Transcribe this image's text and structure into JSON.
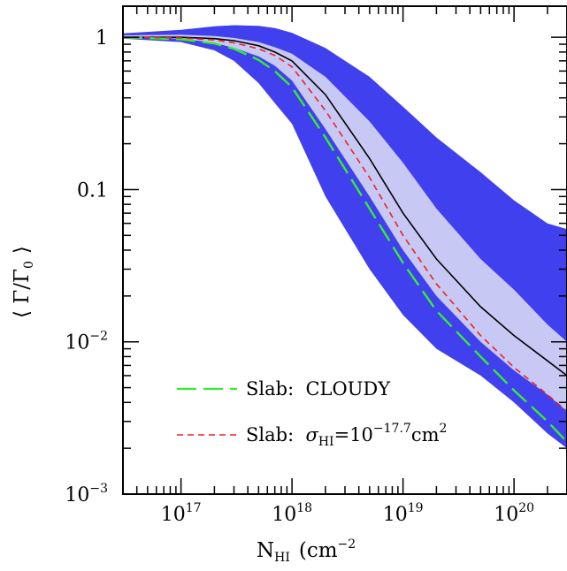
{
  "chart_data": {
    "type": "line",
    "xlabel": "N",
    "xlabel_sub": "HI",
    "xlabel_unit": "(cm",
    "xlabel_unit_exp": "−2",
    "xlabel_unit_close": ")",
    "ylabel": "⟨ Γ/Γ",
    "ylabel_sub": "0",
    "ylabel_close": "⟩",
    "x_scale": "log",
    "y_scale": "log",
    "xlim": [
      3e+16,
      3e+20
    ],
    "ylim": [
      0.001,
      1.6
    ],
    "x_ticks": [
      {
        "value": 1e+17,
        "base": "10",
        "exp": "17"
      },
      {
        "value": 1e+18,
        "base": "10",
        "exp": "18"
      },
      {
        "value": 1e+19,
        "base": "10",
        "exp": "19"
      },
      {
        "value": 1e+20,
        "base": "10",
        "exp": "20"
      }
    ],
    "y_ticks": [
      {
        "value": 1,
        "base": "1",
        "exp": ""
      },
      {
        "value": 0.1,
        "base": "0.1",
        "exp": ""
      },
      {
        "value": 0.01,
        "base": "10",
        "exp": "−2"
      },
      {
        "value": 0.001,
        "base": "10",
        "exp": "−3"
      }
    ],
    "bands": [
      {
        "name": "outer",
        "color": "#4040ee",
        "x": [
          3e+16,
          1e+17,
          2e+17,
          3e+17,
          5e+17,
          7e+17,
          1e+18,
          2e+18,
          5e+18,
          1e+19,
          2e+19,
          5e+19,
          1e+20,
          2e+20,
          3e+20
        ],
        "upper": [
          1.06,
          1.12,
          1.18,
          1.2,
          1.19,
          1.15,
          1.07,
          0.85,
          0.55,
          0.35,
          0.22,
          0.13,
          0.085,
          0.06,
          0.055
        ],
        "lower": [
          0.98,
          0.93,
          0.82,
          0.7,
          0.5,
          0.37,
          0.27,
          0.09,
          0.03,
          0.015,
          0.009,
          0.006,
          0.004,
          0.0025,
          0.002
        ]
      },
      {
        "name": "inner",
        "color": "#c8c8f5",
        "x": [
          3e+16,
          1e+17,
          2e+17,
          3e+17,
          5e+17,
          7e+17,
          1e+18,
          2e+18,
          5e+18,
          1e+19,
          2e+19,
          5e+19,
          1e+20,
          2e+20,
          3e+20
        ],
        "upper": [
          1.03,
          1.04,
          1.02,
          0.99,
          0.93,
          0.86,
          0.78,
          0.55,
          0.28,
          0.15,
          0.075,
          0.035,
          0.022,
          0.013,
          0.01
        ],
        "lower": [
          1.0,
          0.98,
          0.92,
          0.85,
          0.75,
          0.65,
          0.52,
          0.25,
          0.09,
          0.04,
          0.02,
          0.01,
          0.0065,
          0.0045,
          0.0035
        ]
      }
    ],
    "series": [
      {
        "color": "#000000",
        "dash": "",
        "x": [
          3e+16,
          1e+17,
          2e+17,
          3e+17,
          5e+17,
          7e+17,
          1e+18,
          2e+18,
          5e+18,
          1e+19,
          2e+19,
          5e+19,
          1e+20,
          2e+20,
          3e+20
        ],
        "y": [
          1.0,
          1.0,
          0.98,
          0.95,
          0.88,
          0.8,
          0.7,
          0.42,
          0.16,
          0.07,
          0.035,
          0.017,
          0.011,
          0.0075,
          0.006
        ]
      },
      {
        "name": "Slab: CLOUDY",
        "color": "#33ee33",
        "dash": "22,8",
        "x": [
          3e+16,
          1e+17,
          2e+17,
          3e+17,
          5e+17,
          7e+17,
          1e+18,
          2e+18,
          5e+18,
          1e+19,
          2e+19,
          5e+19,
          1e+20,
          2e+20,
          3e+20
        ],
        "y": [
          1.0,
          0.97,
          0.91,
          0.84,
          0.71,
          0.6,
          0.47,
          0.22,
          0.075,
          0.033,
          0.016,
          0.008,
          0.0048,
          0.003,
          0.0022
        ]
      },
      {
        "name": "Slab:",
        "name_sigma": "σ",
        "name_sub": "HI",
        "name_mid": "=10",
        "name_exp": "−17.7",
        "name_unit": "cm",
        "name_unit_exp": "2",
        "color": "#ee2222",
        "dash": "7,5",
        "x": [
          3e+16,
          1e+17,
          2e+17,
          3e+17,
          5e+17,
          7e+17,
          1e+18,
          2e+18,
          5e+18,
          1e+19,
          2e+19,
          5e+19,
          1e+20,
          2e+20,
          3e+20
        ],
        "y": [
          1.0,
          0.99,
          0.96,
          0.92,
          0.84,
          0.76,
          0.64,
          0.33,
          0.12,
          0.05,
          0.024,
          0.011,
          0.0068,
          0.0045,
          0.0035
        ]
      }
    ],
    "legend": {
      "placement": "bottom-center",
      "entries": [
        {
          "text": "Slab:  CLOUDY",
          "series": 1
        },
        {
          "text": "Slab:  ",
          "series": 2
        }
      ]
    },
    "grid": false
  }
}
